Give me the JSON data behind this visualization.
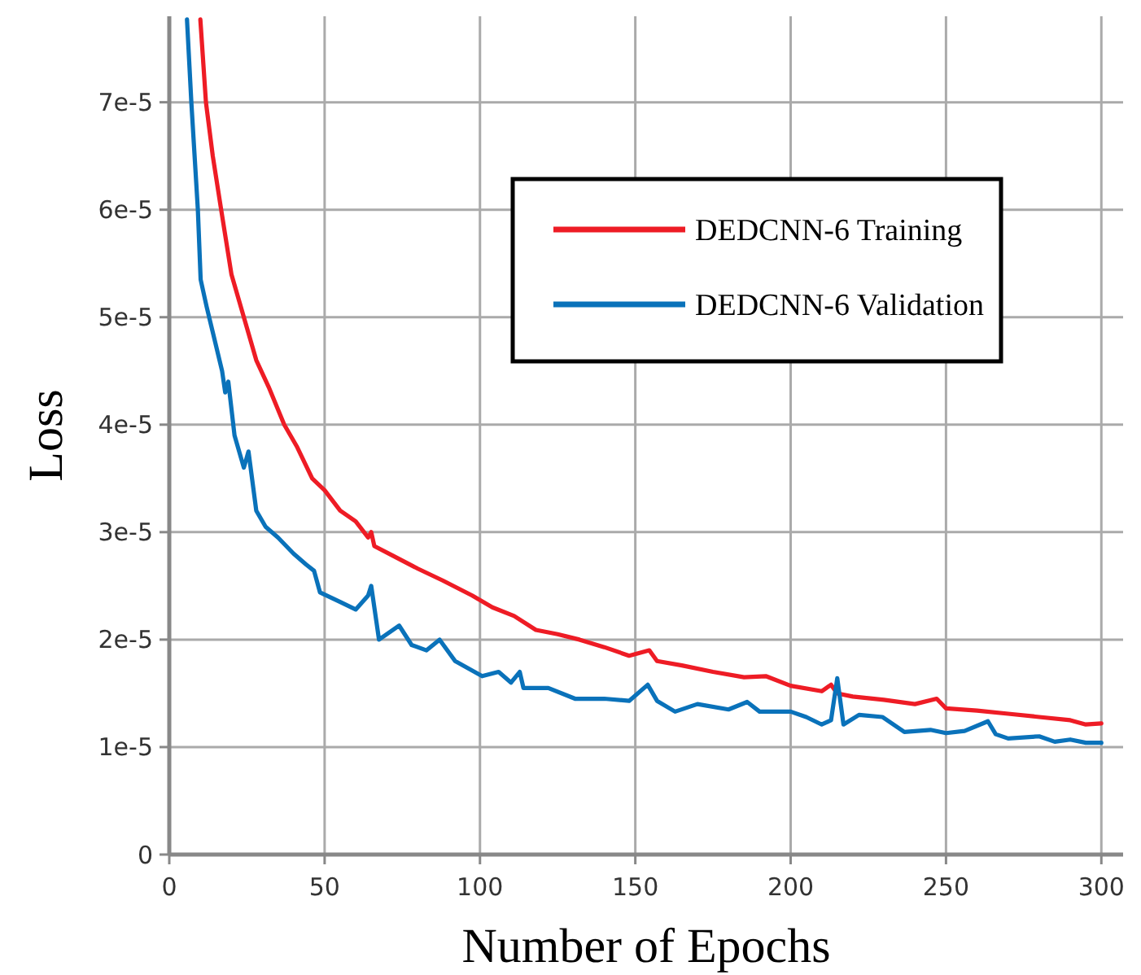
{
  "chart_data": {
    "type": "line",
    "xlabel": "Number of Epochs",
    "ylabel": "Loss",
    "xlim": [
      0,
      307
    ],
    "xticks": [
      0,
      50,
      100,
      150,
      200,
      250,
      300
    ],
    "ylim": [
      0,
      7.8e-05
    ],
    "yticks": [
      {
        "value": 0,
        "label": "0"
      },
      {
        "value": 1e-05,
        "label": "1e-5"
      },
      {
        "value": 2e-05,
        "label": "2e-5"
      },
      {
        "value": 3e-05,
        "label": "3e-5"
      },
      {
        "value": 4e-05,
        "label": "4e-5"
      },
      {
        "value": 5e-05,
        "label": "5e-5"
      },
      {
        "value": 6e-05,
        "label": "6e-5"
      },
      {
        "value": 7e-05,
        "label": "7e-5"
      }
    ],
    "grid": true,
    "legend": "top right",
    "marker": "none",
    "line_style": "solid",
    "series": [
      {
        "name": "DEDCNN-6 Training",
        "color": "#ee1c25",
        "x": [
          10,
          11.8,
          14,
          16.7,
          20,
          24,
          28,
          32,
          37,
          41,
          46,
          50,
          55,
          60,
          64,
          65,
          66,
          72,
          80,
          88,
          97.5,
          104,
          111,
          118,
          125,
          132,
          140,
          148,
          154.5,
          157,
          165,
          175,
          185,
          192,
          200,
          210,
          213,
          215,
          220,
          230,
          240,
          247,
          250,
          260,
          270,
          280,
          290,
          295,
          300
        ],
        "values": [
          7.77e-05,
          7e-05,
          6.5e-05,
          6e-05,
          5.4e-05,
          5e-05,
          4.6e-05,
          4.35e-05,
          4e-05,
          3.8e-05,
          3.5e-05,
          3.39e-05,
          3.2e-05,
          3.1e-05,
          2.95e-05,
          3e-05,
          2.87e-05,
          2.78e-05,
          2.66e-05,
          2.55e-05,
          2.41e-05,
          2.3e-05,
          2.22e-05,
          2.09e-05,
          2.05e-05,
          2e-05,
          1.93e-05,
          1.85e-05,
          1.9e-05,
          1.8e-05,
          1.76e-05,
          1.7e-05,
          1.65e-05,
          1.66e-05,
          1.57e-05,
          1.52e-05,
          1.58e-05,
          1.5e-05,
          1.47e-05,
          1.44e-05,
          1.4e-05,
          1.45e-05,
          1.36e-05,
          1.34e-05,
          1.31e-05,
          1.28e-05,
          1.25e-05,
          1.21e-05,
          1.22e-05
        ]
      },
      {
        "name": "DEDCNN-6 Validation",
        "color": "#0a72ba",
        "x": [
          5.7,
          7.1,
          9.2,
          10.1,
          12,
          14.5,
          17,
          18,
          19,
          21,
          24,
          25.5,
          28,
          31,
          35,
          40,
          44,
          46.6,
          48.5,
          55,
          60,
          64,
          65,
          67.5,
          74,
          78,
          82.8,
          87,
          92,
          100.7,
          106,
          110,
          112.8,
          114,
          122,
          130.6,
          140,
          148,
          154,
          157,
          162.8,
          170,
          180,
          186,
          190,
          200,
          205,
          210,
          213,
          215,
          217,
          222,
          229.5,
          236.6,
          245,
          250,
          256,
          263.5,
          266,
          270,
          280,
          285,
          290,
          295,
          300
        ],
        "values": [
          7.77e-05,
          7e-05,
          6e-05,
          5.35e-05,
          5.1e-05,
          4.8e-05,
          4.5e-05,
          4.3e-05,
          4.4e-05,
          3.9e-05,
          3.6e-05,
          3.75e-05,
          3.2e-05,
          3.05e-05,
          2.95e-05,
          2.8e-05,
          2.7e-05,
          2.64e-05,
          2.44e-05,
          2.35e-05,
          2.28e-05,
          2.41e-05,
          2.5e-05,
          2e-05,
          2.13e-05,
          1.95e-05,
          1.9e-05,
          2e-05,
          1.8e-05,
          1.66e-05,
          1.7e-05,
          1.6e-05,
          1.7e-05,
          1.55e-05,
          1.55e-05,
          1.45e-05,
          1.45e-05,
          1.43e-05,
          1.58e-05,
          1.43e-05,
          1.33e-05,
          1.4e-05,
          1.35e-05,
          1.42e-05,
          1.33e-05,
          1.33e-05,
          1.28e-05,
          1.21e-05,
          1.25e-05,
          1.64e-05,
          1.21e-05,
          1.3e-05,
          1.28e-05,
          1.14e-05,
          1.16e-05,
          1.13e-05,
          1.15e-05,
          1.24e-05,
          1.12e-05,
          1.08e-05,
          1.1e-05,
          1.05e-05,
          1.07e-05,
          1.04e-05,
          1.04e-05
        ]
      }
    ]
  }
}
